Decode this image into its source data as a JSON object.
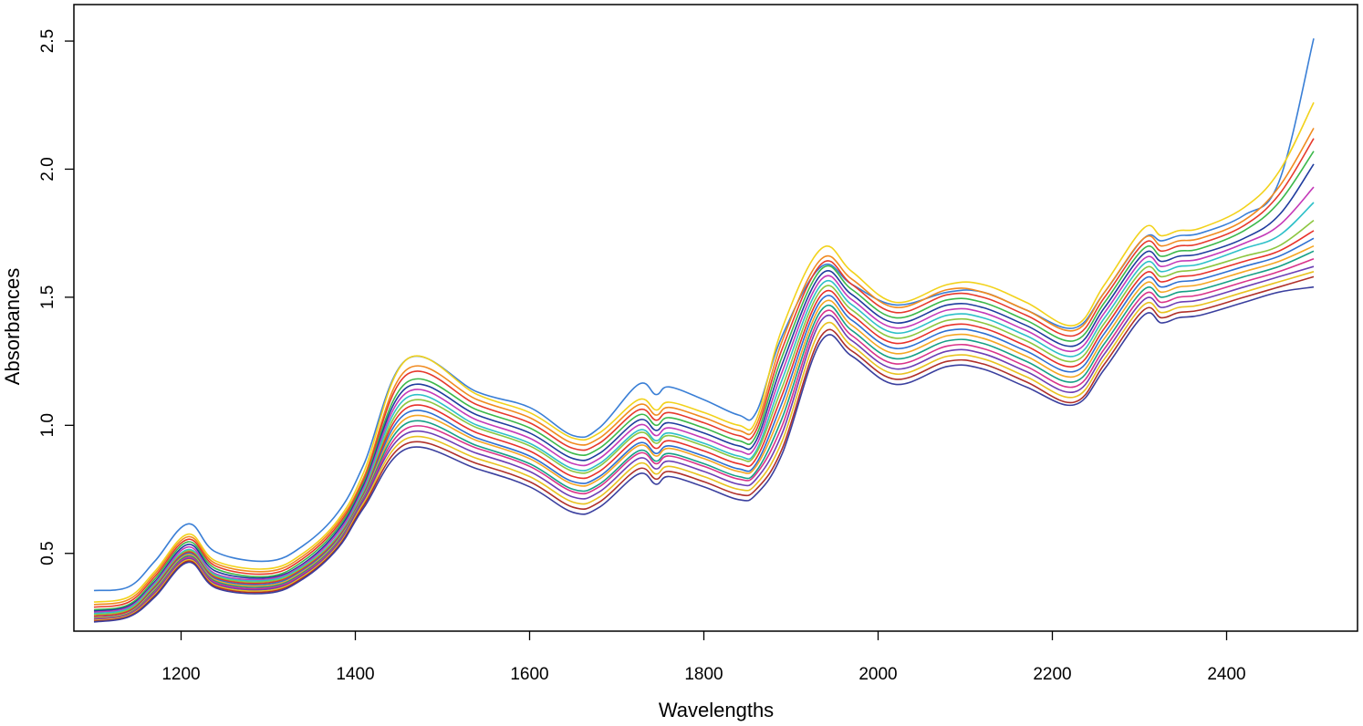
{
  "chart_data": {
    "type": "line",
    "title": "",
    "xlabel": "Wavelengths",
    "ylabel": "Absorbances",
    "xlim": [
      1100,
      2500
    ],
    "ylim": [
      0.2,
      2.55
    ],
    "xticks": [
      1200,
      1400,
      1600,
      1800,
      2000,
      2200,
      2400
    ],
    "yticks": [
      0.5,
      1.0,
      1.5,
      2.0,
      2.5
    ],
    "ytick_labels": [
      "0.5",
      "1.0",
      "1.5",
      "2.0",
      "2.5"
    ],
    "grid": false,
    "legend": "none",
    "x": [
      1100,
      1140,
      1170,
      1208,
      1240,
      1300,
      1340,
      1380,
      1410,
      1460,
      1540,
      1600,
      1650,
      1680,
      1725,
      1745,
      1760,
      1800,
      1840,
      1860,
      1890,
      1935,
      1970,
      2020,
      2080,
      2120,
      2170,
      2225,
      2260,
      2305,
      2325,
      2345,
      2370,
      2420,
      2460,
      2500
    ],
    "series": [
      {
        "values": [
          0.355,
          0.37,
          0.47,
          0.615,
          0.505,
          0.47,
          0.53,
          0.66,
          0.85,
          1.26,
          1.13,
          1.07,
          0.96,
          0.99,
          1.16,
          1.12,
          1.15,
          1.1,
          1.04,
          1.05,
          1.35,
          1.62,
          1.55,
          1.47,
          1.52,
          1.52,
          1.45,
          1.38,
          1.52,
          1.73,
          1.72,
          1.74,
          1.75,
          1.82,
          1.95,
          2.51
        ]
      },
      {
        "values": [
          0.31,
          0.33,
          0.43,
          0.575,
          0.47,
          0.44,
          0.5,
          0.63,
          0.82,
          1.26,
          1.12,
          1.05,
          0.95,
          0.97,
          1.1,
          1.06,
          1.09,
          1.05,
          1.0,
          1.02,
          1.38,
          1.69,
          1.6,
          1.48,
          1.55,
          1.55,
          1.48,
          1.39,
          1.55,
          1.77,
          1.74,
          1.76,
          1.77,
          1.85,
          1.99,
          2.26
        ]
      },
      {
        "values": [
          0.3,
          0.32,
          0.42,
          0.565,
          0.46,
          0.43,
          0.49,
          0.62,
          0.8,
          1.22,
          1.1,
          1.03,
          0.93,
          0.95,
          1.08,
          1.04,
          1.07,
          1.03,
          0.98,
          1.0,
          1.33,
          1.65,
          1.57,
          1.46,
          1.53,
          1.52,
          1.45,
          1.37,
          1.52,
          1.73,
          1.7,
          1.72,
          1.73,
          1.8,
          1.93,
          2.16
        ]
      },
      {
        "values": [
          0.29,
          0.31,
          0.41,
          0.555,
          0.45,
          0.42,
          0.48,
          0.61,
          0.79,
          1.2,
          1.08,
          1.01,
          0.91,
          0.93,
          1.06,
          1.02,
          1.05,
          1.01,
          0.96,
          0.98,
          1.3,
          1.63,
          1.55,
          1.44,
          1.51,
          1.5,
          1.43,
          1.35,
          1.5,
          1.71,
          1.68,
          1.7,
          1.71,
          1.78,
          1.9,
          2.12
        ]
      },
      {
        "values": [
          0.28,
          0.3,
          0.4,
          0.545,
          0.44,
          0.41,
          0.47,
          0.6,
          0.78,
          1.17,
          1.06,
          0.99,
          0.89,
          0.91,
          1.04,
          1.0,
          1.03,
          0.99,
          0.94,
          0.96,
          1.27,
          1.61,
          1.53,
          1.42,
          1.49,
          1.48,
          1.41,
          1.33,
          1.48,
          1.69,
          1.66,
          1.68,
          1.69,
          1.76,
          1.87,
          2.07
        ]
      },
      {
        "values": [
          0.275,
          0.295,
          0.39,
          0.535,
          0.43,
          0.405,
          0.46,
          0.59,
          0.77,
          1.15,
          1.04,
          0.97,
          0.87,
          0.89,
          1.02,
          0.98,
          1.01,
          0.97,
          0.92,
          0.94,
          1.24,
          1.59,
          1.51,
          1.4,
          1.47,
          1.46,
          1.39,
          1.31,
          1.46,
          1.67,
          1.64,
          1.66,
          1.67,
          1.73,
          1.82,
          2.02
        ]
      },
      {
        "values": [
          0.27,
          0.29,
          0.385,
          0.525,
          0.42,
          0.4,
          0.455,
          0.58,
          0.76,
          1.13,
          1.02,
          0.95,
          0.85,
          0.87,
          1.0,
          0.96,
          0.99,
          0.95,
          0.9,
          0.92,
          1.21,
          1.57,
          1.49,
          1.38,
          1.45,
          1.44,
          1.37,
          1.29,
          1.44,
          1.65,
          1.62,
          1.64,
          1.65,
          1.71,
          1.78,
          1.93
        ]
      },
      {
        "values": [
          0.265,
          0.285,
          0.38,
          0.515,
          0.415,
          0.395,
          0.45,
          0.57,
          0.75,
          1.11,
          1.0,
          0.93,
          0.83,
          0.85,
          0.98,
          0.94,
          0.97,
          0.93,
          0.88,
          0.9,
          1.18,
          1.55,
          1.47,
          1.36,
          1.43,
          1.42,
          1.35,
          1.27,
          1.42,
          1.63,
          1.6,
          1.62,
          1.63,
          1.69,
          1.74,
          1.87
        ]
      },
      {
        "values": [
          0.26,
          0.28,
          0.375,
          0.51,
          0.41,
          0.39,
          0.445,
          0.565,
          0.74,
          1.09,
          0.99,
          0.92,
          0.82,
          0.84,
          0.97,
          0.93,
          0.96,
          0.92,
          0.87,
          0.89,
          1.15,
          1.53,
          1.45,
          1.34,
          1.41,
          1.4,
          1.33,
          1.25,
          1.4,
          1.61,
          1.58,
          1.6,
          1.61,
          1.66,
          1.7,
          1.8
        ]
      },
      {
        "values": [
          0.255,
          0.275,
          0.37,
          0.505,
          0.405,
          0.385,
          0.44,
          0.56,
          0.735,
          1.07,
          0.97,
          0.9,
          0.8,
          0.82,
          0.95,
          0.91,
          0.94,
          0.9,
          0.85,
          0.87,
          1.12,
          1.51,
          1.43,
          1.32,
          1.39,
          1.38,
          1.31,
          1.23,
          1.38,
          1.59,
          1.56,
          1.58,
          1.59,
          1.64,
          1.68,
          1.76
        ]
      },
      {
        "values": [
          0.25,
          0.27,
          0.365,
          0.5,
          0.4,
          0.38,
          0.435,
          0.555,
          0.73,
          1.05,
          0.95,
          0.88,
          0.78,
          0.8,
          0.93,
          0.89,
          0.92,
          0.88,
          0.83,
          0.85,
          1.09,
          1.49,
          1.41,
          1.3,
          1.37,
          1.36,
          1.29,
          1.21,
          1.36,
          1.57,
          1.54,
          1.56,
          1.57,
          1.62,
          1.66,
          1.73
        ]
      },
      {
        "values": [
          0.248,
          0.268,
          0.36,
          0.495,
          0.395,
          0.375,
          0.43,
          0.55,
          0.725,
          1.03,
          0.94,
          0.87,
          0.77,
          0.79,
          0.92,
          0.88,
          0.91,
          0.87,
          0.82,
          0.84,
          1.06,
          1.47,
          1.39,
          1.28,
          1.35,
          1.34,
          1.27,
          1.19,
          1.34,
          1.55,
          1.52,
          1.54,
          1.55,
          1.6,
          1.64,
          1.7
        ]
      },
      {
        "values": [
          0.245,
          0.265,
          0.355,
          0.49,
          0.39,
          0.37,
          0.425,
          0.545,
          0.72,
          1.01,
          0.92,
          0.85,
          0.75,
          0.77,
          0.9,
          0.86,
          0.89,
          0.85,
          0.8,
          0.82,
          1.03,
          1.45,
          1.37,
          1.26,
          1.33,
          1.32,
          1.25,
          1.17,
          1.32,
          1.53,
          1.5,
          1.52,
          1.53,
          1.58,
          1.62,
          1.68
        ]
      },
      {
        "values": [
          0.243,
          0.263,
          0.35,
          0.485,
          0.385,
          0.365,
          0.42,
          0.54,
          0.715,
          0.99,
          0.91,
          0.84,
          0.74,
          0.76,
          0.89,
          0.85,
          0.88,
          0.84,
          0.79,
          0.81,
          1.0,
          1.43,
          1.35,
          1.24,
          1.31,
          1.3,
          1.23,
          1.15,
          1.3,
          1.51,
          1.48,
          1.5,
          1.51,
          1.56,
          1.6,
          1.65
        ]
      },
      {
        "values": [
          0.24,
          0.26,
          0.345,
          0.48,
          0.38,
          0.36,
          0.415,
          0.535,
          0.71,
          0.97,
          0.89,
          0.82,
          0.72,
          0.74,
          0.87,
          0.83,
          0.86,
          0.82,
          0.77,
          0.79,
          0.97,
          1.41,
          1.33,
          1.22,
          1.29,
          1.28,
          1.21,
          1.13,
          1.28,
          1.49,
          1.46,
          1.48,
          1.49,
          1.54,
          1.58,
          1.62
        ]
      },
      {
        "values": [
          0.238,
          0.258,
          0.34,
          0.475,
          0.375,
          0.355,
          0.41,
          0.53,
          0.7,
          0.95,
          0.87,
          0.8,
          0.7,
          0.72,
          0.85,
          0.81,
          0.84,
          0.8,
          0.75,
          0.77,
          0.94,
          1.38,
          1.31,
          1.2,
          1.27,
          1.26,
          1.19,
          1.11,
          1.26,
          1.47,
          1.44,
          1.46,
          1.47,
          1.52,
          1.56,
          1.6
        ]
      },
      {
        "values": [
          0.235,
          0.255,
          0.335,
          0.47,
          0.37,
          0.35,
          0.405,
          0.525,
          0.69,
          0.93,
          0.85,
          0.78,
          0.68,
          0.7,
          0.83,
          0.79,
          0.82,
          0.78,
          0.73,
          0.75,
          0.91,
          1.35,
          1.29,
          1.18,
          1.25,
          1.24,
          1.17,
          1.09,
          1.24,
          1.45,
          1.42,
          1.44,
          1.45,
          1.5,
          1.54,
          1.58
        ]
      },
      {
        "values": [
          0.232,
          0.252,
          0.33,
          0.465,
          0.365,
          0.345,
          0.4,
          0.52,
          0.68,
          0.91,
          0.83,
          0.76,
          0.66,
          0.68,
          0.81,
          0.77,
          0.8,
          0.76,
          0.71,
          0.73,
          0.89,
          1.33,
          1.27,
          1.16,
          1.23,
          1.22,
          1.15,
          1.08,
          1.22,
          1.43,
          1.4,
          1.42,
          1.43,
          1.48,
          1.52,
          1.54
        ]
      }
    ]
  },
  "colors": {
    "series": [
      "#3a7fd6",
      "#f2d21b",
      "#f08a1f",
      "#e63a2c",
      "#3cb84a",
      "#1f3c9e",
      "#c43ab8",
      "#2ec0c8",
      "#8cc63f",
      "#e8312a",
      "#2e6fd1",
      "#f5a623",
      "#16a085",
      "#d9338a",
      "#6c3fb5",
      "#e8c21f",
      "#b0302a",
      "#3a3f9e"
    ],
    "axis": "#000000",
    "background": "#ffffff"
  }
}
